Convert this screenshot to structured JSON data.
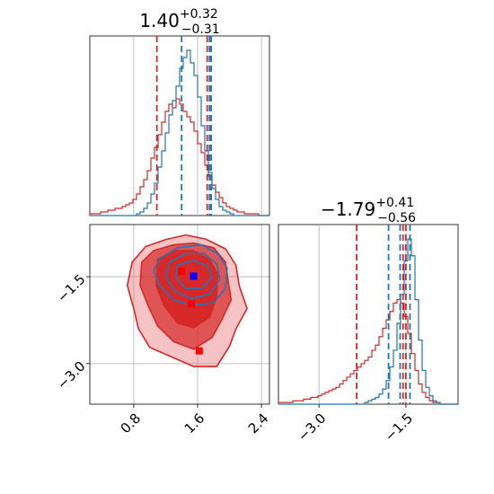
{
  "chart_data": {
    "type": "corner",
    "colors": {
      "red": "#d62728",
      "blue": "#1f77b4",
      "red_fill": "#e8797a",
      "red_dark": "#d62728",
      "blue_marker": "#0000ff",
      "grid": "#b0b0b0"
    },
    "parameters": [
      {
        "id": "p1",
        "range": [
          0.25,
          2.5
        ]
      },
      {
        "id": "p2",
        "range": [
          -3.7,
          -0.6
        ]
      }
    ],
    "titles": [
      {
        "main": "1.40",
        "sup": "+0.32",
        "sub": "−0.31"
      },
      {
        "main": "−1.79",
        "sup": "+0.41",
        "sub": "−0.56"
      }
    ],
    "ticks": {
      "p1": [
        {
          "value": 0.8,
          "label": "0.8"
        },
        {
          "value": 1.6,
          "label": "1.6"
        },
        {
          "value": 2.4,
          "label": "2.4"
        }
      ],
      "p2": [
        {
          "value": -3.0,
          "label": "−3.0"
        },
        {
          "value": -1.5,
          "label": "−1.5"
        }
      ]
    },
    "quantile_lines": {
      "p1": {
        "red": [
          1.09,
          1.72,
          1.75
        ],
        "blue": [
          1.4,
          1.75,
          1.77
        ]
      },
      "p2": {
        "red": [
          -2.35,
          -1.55,
          -1.5
        ],
        "blue": [
          -1.8,
          -1.6,
          -1.43
        ]
      }
    },
    "histograms": {
      "p1": {
        "bin_start": 0.25,
        "bin_width": 0.045,
        "red": [
          0.01,
          0.01,
          0.01,
          0.02,
          0.02,
          0.03,
          0.03,
          0.04,
          0.04,
          0.05,
          0.06,
          0.07,
          0.09,
          0.12,
          0.16,
          0.2,
          0.25,
          0.32,
          0.38,
          0.45,
          0.52,
          0.58,
          0.62,
          0.6,
          0.65,
          0.62,
          0.58,
          0.55,
          0.52,
          0.47,
          0.4,
          0.35,
          0.28,
          0.22,
          0.17,
          0.13,
          0.1,
          0.07,
          0.05,
          0.04,
          0.03,
          0.02,
          0.02,
          0.01,
          0.01,
          0.01,
          0.01,
          0.0,
          0.0,
          0.0
        ],
        "blue": [
          0.0,
          0.0,
          0.0,
          0.0,
          0.0,
          0.0,
          0.0,
          0.0,
          0.0,
          0.0,
          0.0,
          0.0,
          0.0,
          0.01,
          0.02,
          0.04,
          0.07,
          0.12,
          0.18,
          0.27,
          0.36,
          0.46,
          0.56,
          0.64,
          0.72,
          0.82,
          0.88,
          0.92,
          0.85,
          0.78,
          0.66,
          0.5,
          0.36,
          0.24,
          0.15,
          0.09,
          0.05,
          0.03,
          0.02,
          0.01,
          0.0,
          0.0,
          0.0,
          0.0,
          0.0,
          0.0,
          0.0,
          0.0,
          0.0,
          0.0
        ]
      },
      "p2": {
        "bin_start": -3.7,
        "bin_width": 0.062,
        "red": [
          0.01,
          0.01,
          0.01,
          0.01,
          0.02,
          0.02,
          0.02,
          0.03,
          0.03,
          0.04,
          0.04,
          0.05,
          0.06,
          0.07,
          0.08,
          0.09,
          0.1,
          0.12,
          0.14,
          0.16,
          0.18,
          0.2,
          0.22,
          0.24,
          0.26,
          0.28,
          0.32,
          0.35,
          0.4,
          0.45,
          0.5,
          0.55,
          0.6,
          0.62,
          0.6,
          0.52,
          0.42,
          0.3,
          0.2,
          0.12,
          0.07,
          0.04,
          0.02,
          0.01,
          0.01,
          0.0,
          0.0,
          0.0,
          0.0,
          0.0
        ],
        "blue": [
          0.0,
          0.0,
          0.0,
          0.0,
          0.0,
          0.0,
          0.0,
          0.0,
          0.0,
          0.0,
          0.0,
          0.0,
          0.0,
          0.0,
          0.0,
          0.0,
          0.0,
          0.0,
          0.0,
          0.0,
          0.0,
          0.0,
          0.0,
          0.0,
          0.01,
          0.02,
          0.03,
          0.04,
          0.06,
          0.09,
          0.14,
          0.22,
          0.32,
          0.48,
          0.65,
          0.85,
          0.98,
          0.88,
          0.62,
          0.38,
          0.2,
          0.1,
          0.05,
          0.02,
          0.01,
          0.0,
          0.0,
          0.0,
          0.0,
          0.0
        ]
      }
    },
    "joint": {
      "red_markers": [
        {
          "x": 1.4,
          "y": -1.41
        },
        {
          "x": 1.52,
          "y": -1.97
        },
        {
          "x": 1.62,
          "y": -2.78
        }
      ],
      "blue_markers": [
        {
          "x": 1.55,
          "y": -1.49
        }
      ],
      "red_contours": [
        {
          "level": "outer",
          "points": [
            [
              0.78,
              -1.25
            ],
            [
              0.95,
              -0.98
            ],
            [
              1.2,
              -0.86
            ],
            [
              1.45,
              -0.78
            ],
            [
              1.7,
              -0.85
            ],
            [
              1.95,
              -1.02
            ],
            [
              2.08,
              -1.3
            ],
            [
              2.12,
              -1.65
            ],
            [
              2.22,
              -2.05
            ],
            [
              2.08,
              -2.4
            ],
            [
              2.0,
              -2.7
            ],
            [
              1.84,
              -3.05
            ],
            [
              1.55,
              -3.05
            ],
            [
              1.3,
              -2.9
            ],
            [
              1.0,
              -2.72
            ],
            [
              0.86,
              -2.4
            ],
            [
              0.8,
              -2.05
            ],
            [
              0.72,
              -1.65
            ]
          ]
        },
        {
          "level": "middle",
          "points": [
            [
              0.9,
              -1.25
            ],
            [
              1.05,
              -1.05
            ],
            [
              1.3,
              -0.95
            ],
            [
              1.55,
              -0.92
            ],
            [
              1.8,
              -1.0
            ],
            [
              1.95,
              -1.25
            ],
            [
              1.98,
              -1.55
            ],
            [
              2.02,
              -1.9
            ],
            [
              1.9,
              -2.25
            ],
            [
              1.78,
              -2.55
            ],
            [
              1.55,
              -2.75
            ],
            [
              1.3,
              -2.62
            ],
            [
              1.1,
              -2.35
            ],
            [
              0.98,
              -2.0
            ],
            [
              0.88,
              -1.65
            ]
          ]
        },
        {
          "level": "inner",
          "points": [
            [
              1.1,
              -1.2
            ],
            [
              1.3,
              -1.05
            ],
            [
              1.55,
              -1.05
            ],
            [
              1.75,
              -1.2
            ],
            [
              1.85,
              -1.45
            ],
            [
              1.84,
              -1.85
            ],
            [
              1.75,
              -2.2
            ],
            [
              1.55,
              -2.38
            ],
            [
              1.35,
              -2.3
            ],
            [
              1.18,
              -2.0
            ],
            [
              1.08,
              -1.65
            ]
          ]
        }
      ],
      "blue_contours": [
        {
          "level": "outer",
          "points": [
            [
              1.12,
              -1.2
            ],
            [
              1.35,
              -1.0
            ],
            [
              1.65,
              -0.95
            ],
            [
              1.85,
              -1.1
            ],
            [
              1.97,
              -1.35
            ],
            [
              1.95,
              -1.7
            ],
            [
              1.8,
              -1.95
            ],
            [
              1.55,
              -2.0
            ],
            [
              1.3,
              -1.9
            ],
            [
              1.12,
              -1.65
            ],
            [
              1.05,
              -1.4
            ]
          ]
        },
        {
          "level": "middle",
          "points": [
            [
              1.25,
              -1.25
            ],
            [
              1.45,
              -1.1
            ],
            [
              1.68,
              -1.1
            ],
            [
              1.84,
              -1.28
            ],
            [
              1.88,
              -1.55
            ],
            [
              1.75,
              -1.8
            ],
            [
              1.52,
              -1.88
            ],
            [
              1.32,
              -1.75
            ],
            [
              1.2,
              -1.5
            ]
          ]
        },
        {
          "level": "inner",
          "points": [
            [
              1.35,
              -1.3
            ],
            [
              1.55,
              -1.22
            ],
            [
              1.73,
              -1.32
            ],
            [
              1.78,
              -1.52
            ],
            [
              1.65,
              -1.7
            ],
            [
              1.45,
              -1.7
            ],
            [
              1.33,
              -1.52
            ]
          ]
        }
      ]
    }
  }
}
